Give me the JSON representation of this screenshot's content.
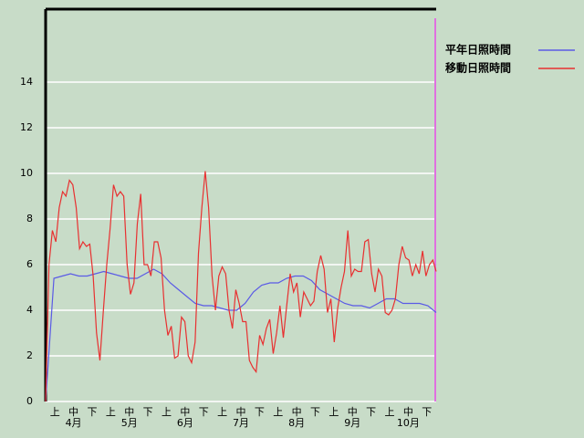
{
  "chart_data": {
    "type": "line",
    "ylim": [
      0,
      17.2
    ],
    "yticks": [
      0,
      2,
      4,
      6,
      8,
      10,
      12,
      14
    ],
    "grid": true,
    "dekad_labels": [
      "上",
      "中",
      "下",
      "上",
      "中",
      "下",
      "上",
      "中",
      "下",
      "上",
      "中",
      "下",
      "上",
      "中",
      "下",
      "上",
      "中",
      "下",
      "上",
      "中",
      "下"
    ],
    "month_labels": [
      "4月",
      "5月",
      "6月",
      "7月",
      "8月",
      "9月",
      "10月"
    ],
    "series": [
      {
        "name": "平年日照時間",
        "color": "#5a5ae6",
        "values": [
          0,
          5.4,
          5.5,
          5.6,
          5.5,
          5.5,
          5.6,
          5.7,
          5.6,
          5.5,
          5.4,
          5.4,
          5.6,
          5.8,
          5.6,
          5.2,
          4.9,
          4.6,
          4.3,
          4.2,
          4.2,
          4.1,
          4.0,
          4.0,
          4.3,
          4.8,
          5.1,
          5.2,
          5.2,
          5.4,
          5.5,
          5.5,
          5.3,
          4.9,
          4.7,
          4.5,
          4.3,
          4.2,
          4.2,
          4.1,
          4.3,
          4.5,
          4.5,
          4.3,
          4.3,
          4.3,
          4.2,
          3.9
        ]
      },
      {
        "name": "移動日照時間",
        "color": "#e83030",
        "values": [
          0,
          6,
          7.5,
          7,
          8.5,
          9.2,
          9,
          9.7,
          9.5,
          8.5,
          6.7,
          7,
          6.8,
          6.9,
          5.5,
          3,
          1.8,
          4,
          6,
          7.6,
          9.5,
          9,
          9.2,
          9,
          6,
          4.7,
          5.2,
          7.8,
          9.1,
          6,
          6,
          5.5,
          7,
          7,
          6.3,
          4,
          2.9,
          3.3,
          1.9,
          2,
          3.7,
          3.5,
          2,
          1.7,
          2.6,
          6.5,
          8.5,
          10.1,
          8.5,
          5.5,
          4,
          5.5,
          5.9,
          5.6,
          4,
          3.2,
          4.9,
          4.3,
          3.5,
          3.5,
          1.8,
          1.5,
          1.3,
          2.9,
          2.5,
          3.2,
          3.6,
          2.1,
          3,
          4.2,
          2.8,
          4.2,
          5.6,
          4.8,
          5.2,
          3.7,
          4.8,
          4.5,
          4.2,
          4.4,
          5.7,
          6.4,
          5.8,
          3.9,
          4.5,
          2.6,
          4.1,
          5,
          5.7,
          7.5,
          5.5,
          5.8,
          5.7,
          5.7,
          7,
          7.1,
          5.6,
          4.8,
          5.8,
          5.5,
          3.9,
          3.8,
          4,
          4.5,
          6,
          6.8,
          6.3,
          6.2,
          5.5,
          6,
          5.6,
          6.6,
          5.5,
          6,
          6.2,
          5.7
        ]
      }
    ]
  }
}
